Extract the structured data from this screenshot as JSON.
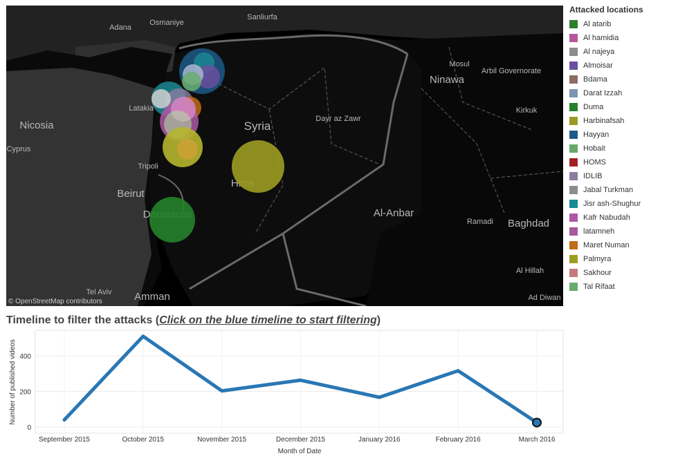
{
  "map": {
    "attribution": "© OpenStreetMap contributors",
    "background_color": "#000000",
    "place_labels": [
      {
        "name": "Adana",
        "size": "small"
      },
      {
        "name": "Osmaniye",
        "size": "small"
      },
      {
        "name": "Sanliurfa",
        "size": "small"
      },
      {
        "name": "Mosul",
        "size": "small"
      },
      {
        "name": "Arbil Governorate",
        "size": "small"
      },
      {
        "name": "Ninawa",
        "size": "medium"
      },
      {
        "name": "Nicosia",
        "size": "medium"
      },
      {
        "name": "Cyprus",
        "size": "small"
      },
      {
        "name": "Latakia",
        "size": "small"
      },
      {
        "name": "Syria",
        "size": "large"
      },
      {
        "name": "Dayr az Zawr",
        "size": "small"
      },
      {
        "name": "Kirkuk",
        "size": "small"
      },
      {
        "name": "Tripoli",
        "size": "small"
      },
      {
        "name": "Hims",
        "size": "medium"
      },
      {
        "name": "Beirut",
        "size": "medium"
      },
      {
        "name": "Damascus",
        "size": "medium"
      },
      {
        "name": "Al-Anbar",
        "size": "medium"
      },
      {
        "name": "Ramadi",
        "size": "small"
      },
      {
        "name": "Baghdad",
        "size": "medium"
      },
      {
        "name": "Al Hillah",
        "size": "small"
      },
      {
        "name": "Tel Aviv",
        "size": "small"
      },
      {
        "name": "Amman",
        "size": "medium"
      },
      {
        "name": "Ad Diwan",
        "size": "small"
      }
    ]
  },
  "legend": {
    "title": "Attacked locations",
    "items": [
      {
        "label": "Al atarib",
        "color": "#2d7f2d"
      },
      {
        "label": "Al hamidia",
        "color": "#b4589e"
      },
      {
        "label": "Al najeya",
        "color": "#8c8c8c"
      },
      {
        "label": "Almoisar",
        "color": "#6b4f9e"
      },
      {
        "label": "Bdama",
        "color": "#8c6d62"
      },
      {
        "label": "Darat Izzah",
        "color": "#7d93b4"
      },
      {
        "label": "Duma",
        "color": "#24822a"
      },
      {
        "label": "Harbinafsah",
        "color": "#9a9a25"
      },
      {
        "label": "Hayyan",
        "color": "#1d5a88"
      },
      {
        "label": "Hobait",
        "color": "#68a868"
      },
      {
        "label": "HOMS",
        "color": "#a31f24"
      },
      {
        "label": "IDLIB",
        "color": "#8c7ea0"
      },
      {
        "label": "Jabal Turkman",
        "color": "#8c8c8c"
      },
      {
        "label": "Jisr ash-Shughur",
        "color": "#1a8a94"
      },
      {
        "label": "Kafr Nabudah",
        "color": "#ad58a5"
      },
      {
        "label": "latamneh",
        "color": "#a8589e"
      },
      {
        "label": "Maret Numan",
        "color": "#c06b17"
      },
      {
        "label": "Palmyra",
        "color": "#9c9c22"
      },
      {
        "label": "Sakhour",
        "color": "#c47b78"
      },
      {
        "label": "Tal Rifaat",
        "color": "#6aab6e"
      }
    ]
  },
  "timeline": {
    "title": "Timeline to filter the attacks (",
    "cta": "Click on the blue timeline to start filtering",
    "title_end": ")"
  },
  "chart_data": {
    "type": "line",
    "categories": [
      "September 2015",
      "October 2015",
      "November 2015",
      "December 2015",
      "January 2016",
      "February 2016",
      "March 2016"
    ],
    "values": [
      40,
      510,
      203,
      263,
      167,
      316,
      25
    ],
    "xlabel": "Month of Date",
    "ylabel": "Number of published videos",
    "ylim": [
      -20,
      540
    ],
    "yticks": [
      0,
      200,
      400
    ],
    "line_color": "#2a77b4",
    "grid": true,
    "highlighted_point": "March 2016"
  }
}
